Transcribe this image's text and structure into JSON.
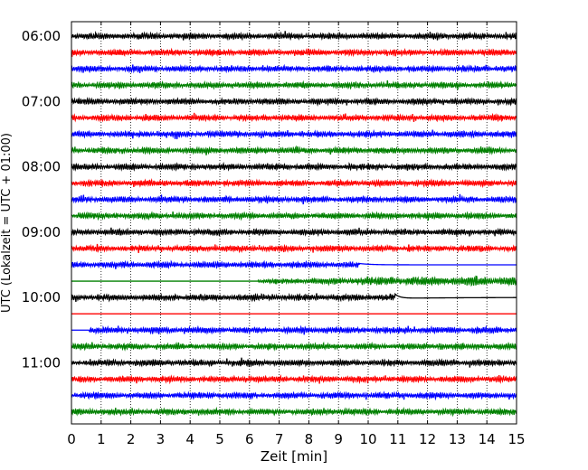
{
  "chart_data": {
    "type": "line",
    "title": "",
    "xlabel": "Zeit  [min]",
    "ylabel": "UTC (Lokalzeit = UTC + 01:00)",
    "xlim": [
      0,
      15
    ],
    "x_ticks": [
      "0",
      "1",
      "2",
      "3",
      "4",
      "5",
      "6",
      "7",
      "8",
      "9",
      "10",
      "11",
      "12",
      "13",
      "14",
      "15"
    ],
    "y_tick_labels": [
      "06:00",
      "07:00",
      "08:00",
      "09:00",
      "10:00",
      "11:00"
    ],
    "row_interval_min": 15,
    "start_time": "06:00",
    "grid": "vertical dotted lines at each minute",
    "trace_colors": [
      "#000000",
      "#ff0000",
      "#0000ff",
      "#008000"
    ],
    "traces": [
      {
        "time": "06:00",
        "color": "#000000",
        "signal": "noise",
        "from_min": 0,
        "to_min": 15
      },
      {
        "time": "06:15",
        "color": "#ff0000",
        "signal": "noise",
        "from_min": 0,
        "to_min": 15
      },
      {
        "time": "06:30",
        "color": "#0000ff",
        "signal": "noise",
        "from_min": 0,
        "to_min": 15
      },
      {
        "time": "06:45",
        "color": "#008000",
        "signal": "noise",
        "from_min": 0,
        "to_min": 15
      },
      {
        "time": "07:00",
        "color": "#000000",
        "signal": "noise",
        "from_min": 0,
        "to_min": 15
      },
      {
        "time": "07:15",
        "color": "#ff0000",
        "signal": "noise",
        "from_min": 0,
        "to_min": 15
      },
      {
        "time": "07:30",
        "color": "#0000ff",
        "signal": "noise",
        "from_min": 0,
        "to_min": 15
      },
      {
        "time": "07:45",
        "color": "#008000",
        "signal": "noise",
        "from_min": 0,
        "to_min": 15
      },
      {
        "time": "08:00",
        "color": "#000000",
        "signal": "noise",
        "from_min": 0,
        "to_min": 15
      },
      {
        "time": "08:15",
        "color": "#ff0000",
        "signal": "noise",
        "from_min": 0,
        "to_min": 15
      },
      {
        "time": "08:30",
        "color": "#0000ff",
        "signal": "noise",
        "from_min": 0,
        "to_min": 15
      },
      {
        "time": "08:45",
        "color": "#008000",
        "signal": "noise",
        "from_min": 0,
        "to_min": 15
      },
      {
        "time": "09:00",
        "color": "#000000",
        "signal": "noise",
        "from_min": 0,
        "to_min": 15
      },
      {
        "time": "09:15",
        "color": "#ff0000",
        "signal": "noise",
        "from_min": 0,
        "to_min": 15
      },
      {
        "time": "09:30",
        "color": "#0000ff",
        "signal": "noise then flat",
        "from_min": 0,
        "to_min": 9.7
      },
      {
        "time": "09:45",
        "color": "#008000",
        "signal": "flat then noise",
        "from_min": 6.3,
        "to_min": 15
      },
      {
        "time": "10:00",
        "color": "#000000",
        "signal": "noise then step",
        "from_min": 0,
        "to_min": 10.9
      },
      {
        "time": "10:15",
        "color": "#ff0000",
        "signal": "flat",
        "from_min": 0,
        "to_min": 0
      },
      {
        "time": "10:30",
        "color": "#0000ff",
        "signal": "noise",
        "from_min": 0.6,
        "to_min": 15
      },
      {
        "time": "10:45",
        "color": "#008000",
        "signal": "noise",
        "from_min": 0,
        "to_min": 15
      },
      {
        "time": "11:00",
        "color": "#000000",
        "signal": "noise",
        "from_min": 0,
        "to_min": 15
      },
      {
        "time": "11:15",
        "color": "#ff0000",
        "signal": "noise",
        "from_min": 0,
        "to_min": 15
      },
      {
        "time": "11:30",
        "color": "#0000ff",
        "signal": "noise",
        "from_min": 0,
        "to_min": 15
      },
      {
        "time": "11:45",
        "color": "#008000",
        "signal": "noise",
        "from_min": 0,
        "to_min": 15
      }
    ]
  }
}
